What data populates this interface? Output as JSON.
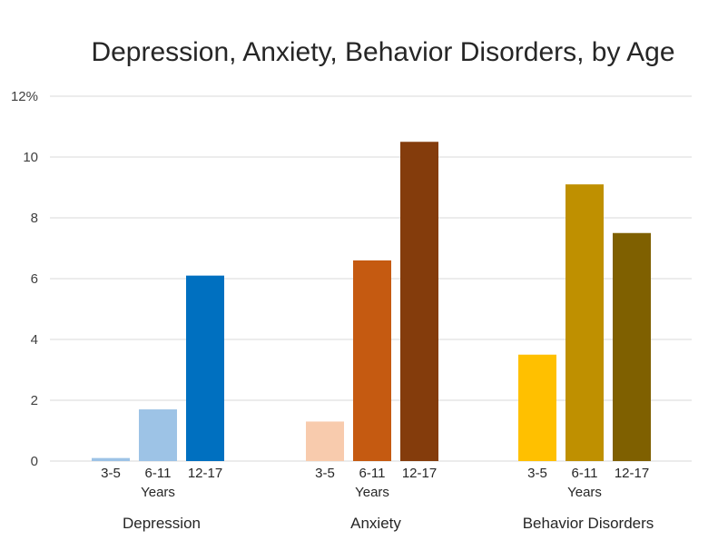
{
  "chart_data": {
    "type": "bar",
    "title": "Depression, Anxiety, Behavior Disorders, by Age",
    "ylim": [
      0,
      12
    ],
    "yticks": [
      0,
      2,
      4,
      6,
      8,
      10,
      12
    ],
    "ytick_labels": [
      "0",
      "2",
      "4",
      "6",
      "8",
      "10",
      "12%"
    ],
    "grid": true,
    "age_groups": [
      "3-5",
      "6-11",
      "12-17"
    ],
    "age_axis_label": "Years",
    "groups": [
      {
        "name": "Depression",
        "values": [
          0.1,
          1.7,
          6.1
        ],
        "colors": [
          "#9dc3e6",
          "#9dc3e6",
          "#0070c0"
        ]
      },
      {
        "name": "Anxiety",
        "values": [
          1.3,
          6.6,
          10.5
        ],
        "colors": [
          "#f8cbad",
          "#c55a11",
          "#843c0c"
        ]
      },
      {
        "name": "Behavior Disorders",
        "values": [
          3.5,
          9.1,
          7.5
        ],
        "colors": [
          "#ffc000",
          "#bf9000",
          "#7f6000"
        ]
      }
    ]
  }
}
